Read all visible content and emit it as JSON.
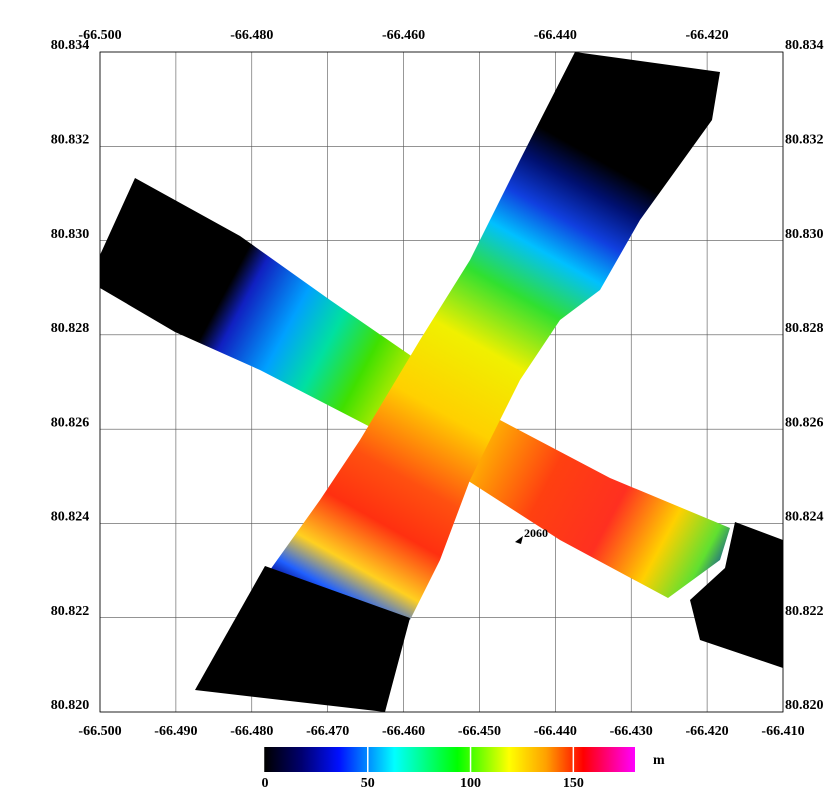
{
  "map": {
    "top_ticks": [
      {
        "value": -66.5,
        "label": "-66.500"
      },
      {
        "value": -66.48,
        "label": "-66.480"
      },
      {
        "value": -66.46,
        "label": "-66.460"
      },
      {
        "value": -66.44,
        "label": "-66.440"
      },
      {
        "value": -66.42,
        "label": "-66.420"
      }
    ],
    "bottom_ticks": [
      {
        "value": -66.5,
        "label": "-66.500"
      },
      {
        "value": -66.49,
        "label": "-66.490"
      },
      {
        "value": -66.48,
        "label": "-66.480"
      },
      {
        "value": -66.47,
        "label": "-66.470"
      },
      {
        "value": -66.46,
        "label": "-66.460"
      },
      {
        "value": -66.45,
        "label": "-66.450"
      },
      {
        "value": -66.44,
        "label": "-66.440"
      },
      {
        "value": -66.43,
        "label": "-66.430"
      },
      {
        "value": -66.42,
        "label": "-66.420"
      },
      {
        "value": -66.41,
        "label": "-66.410"
      }
    ],
    "lat_ticks": [
      {
        "value": 80.834,
        "label": "80.834"
      },
      {
        "value": 80.832,
        "label": "80.832"
      },
      {
        "value": 80.83,
        "label": "80.830"
      },
      {
        "value": 80.828,
        "label": "80.828"
      },
      {
        "value": 80.826,
        "label": "80.826"
      },
      {
        "value": 80.824,
        "label": "80.824"
      },
      {
        "value": 80.822,
        "label": "80.822"
      },
      {
        "value": 80.82,
        "label": "80.820"
      }
    ],
    "colorbar": {
      "lim": [
        0,
        180
      ],
      "ticks": [
        0,
        50,
        100,
        150
      ],
      "unit": "m"
    },
    "annotation": "2060"
  }
}
